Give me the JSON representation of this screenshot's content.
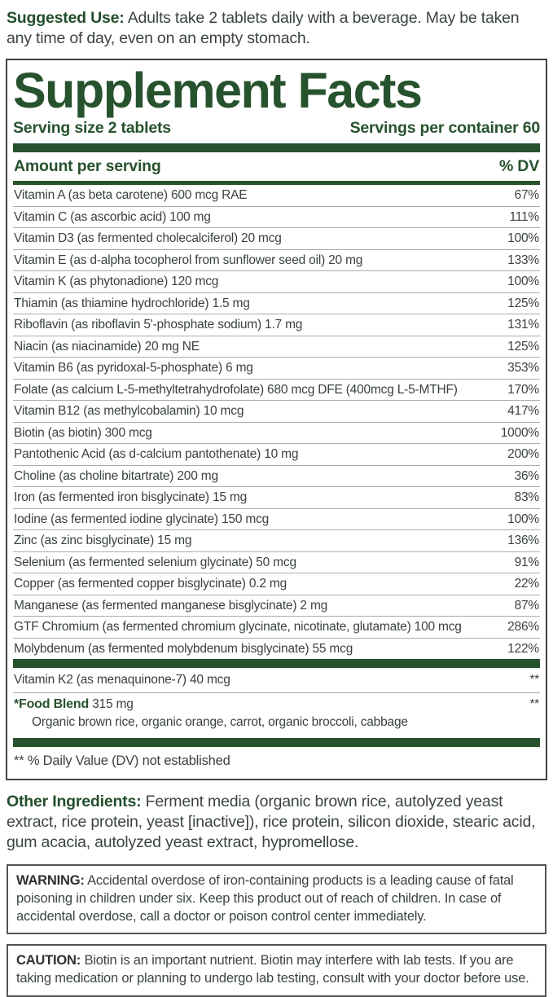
{
  "suggested_use": {
    "label": "Suggested Use:",
    "text": " Adults take 2 tablets daily with a beverage. May be taken any time of day, even on an empty stomach."
  },
  "panel": {
    "title": "Supplement Facts",
    "serving_size": "Serving size 2 tablets",
    "servings_per_container": "Servings per container 60",
    "header": {
      "left": "Amount per serving",
      "right": "% DV"
    },
    "rows": [
      {
        "name": "Vitamin A (as beta carotene) 600 mcg RAE",
        "dv": "67%"
      },
      {
        "name": "Vitamin C (as ascorbic acid) 100 mg",
        "dv": "111%"
      },
      {
        "name": "Vitamin D3 (as fermented cholecalciferol) 20 mcg",
        "dv": "100%"
      },
      {
        "name": "Vitamin E (as d-alpha tocopherol from sunflower seed oil) 20 mg",
        "dv": "133%"
      },
      {
        "name": "Vitamin K (as phytonadione) 120 mcg",
        "dv": "100%"
      },
      {
        "name": "Thiamin (as thiamine hydrochloride) 1.5 mg",
        "dv": "125%"
      },
      {
        "name": "Riboflavin (as riboflavin 5'-phosphate sodium) 1.7 mg",
        "dv": "131%"
      },
      {
        "name": "Niacin (as niacinamide) 20 mg NE",
        "dv": "125%"
      },
      {
        "name": "Vitamin B6 (as pyridoxal-5-phosphate) 6 mg",
        "dv": "353%"
      },
      {
        "name": "Folate (as calcium L-5-methyltetrahydrofolate) 680 mcg DFE (400mcg L-5-MTHF)",
        "dv": "170%"
      },
      {
        "name": "Vitamin B12 (as methylcobalamin) 10 mcg",
        "dv": "417%"
      },
      {
        "name": "Biotin (as biotin) 300 mcg",
        "dv": "1000%"
      },
      {
        "name": "Pantothenic Acid (as d-calcium pantothenate) 10 mg",
        "dv": "200%"
      },
      {
        "name": "Choline (as choline bitartrate) 200 mg",
        "dv": "36%"
      },
      {
        "name": "Iron (as fermented iron bisglycinate) 15 mg",
        "dv": "83%"
      },
      {
        "name": "Iodine (as fermented iodine glycinate) 150 mcg",
        "dv": "100%"
      },
      {
        "name": "Zinc (as zinc bisglycinate) 15 mg",
        "dv": "136%"
      },
      {
        "name": "Selenium (as fermented selenium glycinate) 50 mcg",
        "dv": "91%"
      },
      {
        "name": "Copper (as fermented copper bisglycinate) 0.2 mg",
        "dv": "22%"
      },
      {
        "name": "Manganese (as fermented manganese bisglycinate) 2 mg",
        "dv": "87%"
      },
      {
        "name": "GTF Chromium (as fermented chromium glycinate, nicotinate, glutamate) 100 mcg",
        "dv": "286%"
      },
      {
        "name": "Molybdenum (as fermented molybdenum bisglycinate) 55 mcg",
        "dv": "122%"
      }
    ],
    "vitamin_k2": {
      "name": "Vitamin K2 (as menaquinone-7) 40 mcg",
      "dv": "**"
    },
    "food_blend": {
      "bold": "*Food Blend",
      "rest": " 315 mg",
      "dv": "**",
      "sub": "Organic brown rice, organic orange, carrot, organic broccoli, cabbage"
    },
    "footnote": "** % Daily Value (DV) not established"
  },
  "other_ingredients": {
    "label": "Other Ingredients:",
    "text": " Ferment media (organic brown rice, autolyzed yeast extract, rice protein, yeast [inactive]), rice protein, silicon dioxide, stearic acid, gum acacia, autolyzed yeast extract, hypromellose."
  },
  "warning": {
    "label": "WARNING:",
    "text": " Accidental overdose of iron-containing products is a leading cause of fatal poisoning in children under six. Keep this product out of reach of children. In case of accidental overdose, call a doctor or poison control center immediately."
  },
  "caution": {
    "label": "CAUTION:",
    "text": " Biotin is an important nutrient. Biotin may interfere with lab tests. If you are taking medication or planning to undergo lab testing, consult with your doctor before use."
  },
  "colors": {
    "brand_green": "#27522e",
    "body_text": "#3b453d",
    "separator": "#a7afa6",
    "panel_border": "#3e463f"
  }
}
